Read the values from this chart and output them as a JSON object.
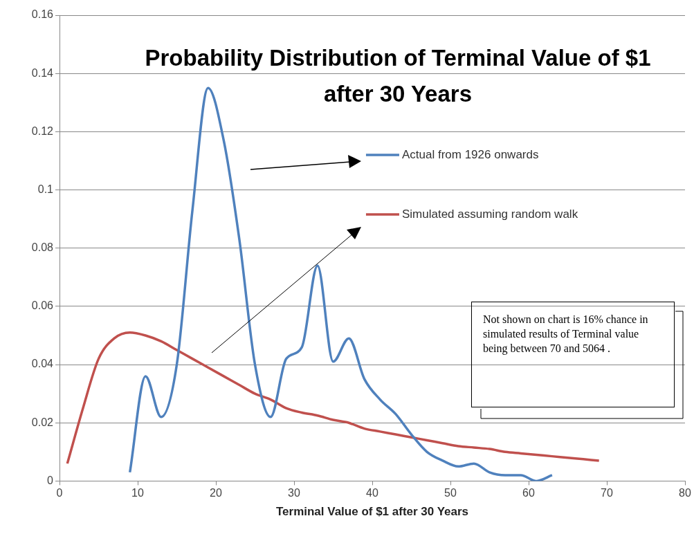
{
  "chart_data": {
    "type": "line",
    "title": "Probability Distribution of Terminal Value of $1 after 30 Years",
    "xlabel": "Terminal Value of $1 after 30 Years",
    "xlim": [
      0,
      80
    ],
    "xticks": [
      0,
      10,
      20,
      30,
      40,
      50,
      60,
      70,
      80
    ],
    "ylim": [
      0,
      0.16
    ],
    "yticks": [
      0,
      0.02,
      0.04,
      0.06,
      0.08,
      0.1,
      0.12,
      0.14,
      0.16
    ],
    "grid": "y",
    "legend": "top right",
    "marker": "none",
    "line_style": "solid",
    "series": [
      {
        "name": "Actual from 1926 onwards",
        "color": "#4f81bd",
        "x": [
          9,
          11,
          13,
          15,
          17,
          19,
          21,
          23,
          25,
          27,
          29,
          31,
          33,
          35,
          37,
          39,
          41,
          43,
          45,
          47,
          49,
          51,
          53,
          55,
          57,
          59,
          61,
          63
        ],
        "values": [
          0.003,
          0.036,
          0.022,
          0.04,
          0.093,
          0.135,
          0.117,
          0.083,
          0.04,
          0.022,
          0.042,
          0.046,
          0.074,
          0.041,
          0.049,
          0.035,
          0.028,
          0.023,
          0.016,
          0.01,
          0.007,
          0.005,
          0.006,
          0.003,
          0.002,
          0.002,
          0,
          0.002
        ]
      },
      {
        "name": "Simulated assuming random walk",
        "color": "#c0504d",
        "x": [
          1,
          3,
          5,
          7,
          9,
          11,
          13,
          15,
          17,
          19,
          21,
          23,
          25,
          27,
          29,
          31,
          33,
          35,
          37,
          39,
          41,
          43,
          45,
          47,
          49,
          51,
          53,
          55,
          57,
          59,
          61,
          63,
          65,
          67,
          69
        ],
        "values": [
          0.006,
          0.025,
          0.042,
          0.049,
          0.051,
          0.05,
          0.048,
          0.045,
          0.042,
          0.039,
          0.036,
          0.033,
          0.03,
          0.028,
          0.025,
          0.0235,
          0.0225,
          0.021,
          0.02,
          0.018,
          0.017,
          0.016,
          0.015,
          0.014,
          0.013,
          0.012,
          0.0115,
          0.011,
          0.01,
          0.0095,
          0.009,
          0.0085,
          0.008,
          0.0075,
          0.007
        ]
      }
    ],
    "annotations": [
      "Not shown on chart is 16% chance in simulated results of Terminal value being between 70 and 5064 ."
    ]
  }
}
